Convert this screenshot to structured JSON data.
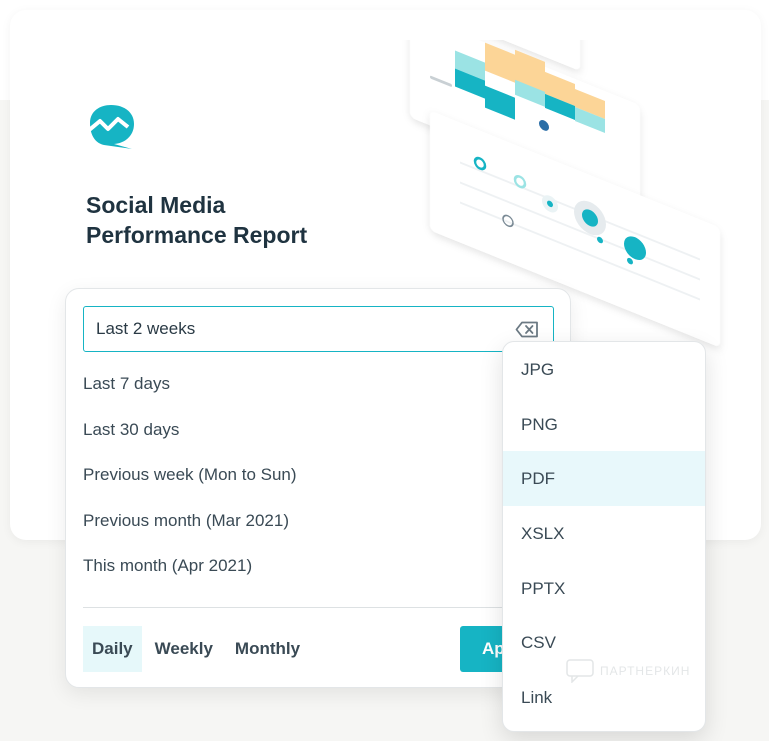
{
  "report": {
    "title_line1": "Social Media",
    "title_line2": "Performance Report"
  },
  "date_picker": {
    "input_value": "Last 2 weeks",
    "presets": [
      "Last 7 days",
      "Last 30 days",
      "Previous week (Mon to Sun)",
      "Previous month (Mar 2021)",
      "This month (Apr 2021)"
    ],
    "granularity": [
      "Daily",
      "Weekly",
      "Monthly"
    ],
    "active_granularity": "Daily",
    "apply_label": "Ap"
  },
  "export_menu": {
    "options": [
      "JPG",
      "PNG",
      "PDF",
      "XSLX",
      "PPTX",
      "CSV",
      "Link"
    ],
    "highlighted": "PDF"
  },
  "watermark": {
    "text": "ПАРТНЕРКИН"
  },
  "colors": {
    "accent": "#16b4c4",
    "accent_light": "#e6f8fa",
    "title": "#1f3340",
    "chart_yellow": "#fcd597",
    "chart_teal": "#9be3e4",
    "chart_salmon": "#f3a98b"
  },
  "icons": {
    "logo": "chart-bubble-logo-icon",
    "clear": "backspace-clear-icon",
    "eye": "eye-icon",
    "twitter": "twitter-bird-icon"
  }
}
